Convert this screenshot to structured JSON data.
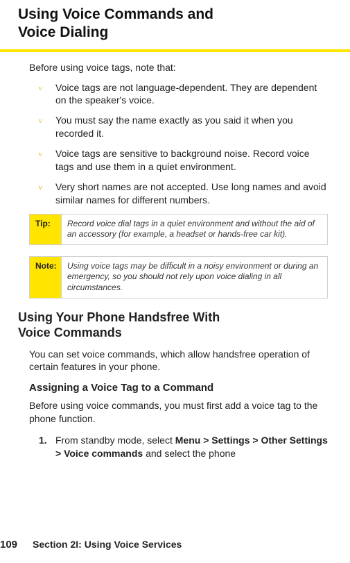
{
  "title_line1": "Using Voice Commands and",
  "title_line2": "Voice Dialing",
  "intro": "Before using voice tags, note that:",
  "bullets": [
    "Voice tags are not language-dependent. They are dependent on the speaker's voice.",
    "You must say the name exactly as you said it when you recorded it.",
    "Voice tags are sensitive to background noise. Record voice tags and use them in a quiet environment.",
    "Very short names are not accepted. Use long names and avoid similar names for different numbers."
  ],
  "bullet_marker": "v",
  "tip": {
    "label": "Tip:",
    "body": "Record voice dial tags in a quiet environment and without the aid of an accessory (for example, a headset or hands-free car kit)."
  },
  "note": {
    "label": "Note:",
    "body": "Using voice tags may be difficult in a noisy environment or during an emergency, so you should not rely upon voice dialing in all circumstances."
  },
  "h2_line1": "Using Your Phone Handsfree With",
  "h2_line2": "Voice Commands",
  "h2_para": "You can set voice commands, which allow handsfree operation of certain features in your phone.",
  "h3": "Assigning a Voice Tag to a Command",
  "h3_para": "Before using voice commands, you must first add a voice tag to the phone function.",
  "step1_num": "1.",
  "step1_pre": "From standby mode, select ",
  "step1_bold": "Menu > Settings > Other Settings > Voice commands",
  "step1_post": " and select the phone",
  "footer": {
    "page": "109",
    "section": "Section 2I: Using Voice Services"
  },
  "colors": {
    "accent": "#ffe500",
    "border": "#d0d0d0",
    "text": "#222222"
  }
}
